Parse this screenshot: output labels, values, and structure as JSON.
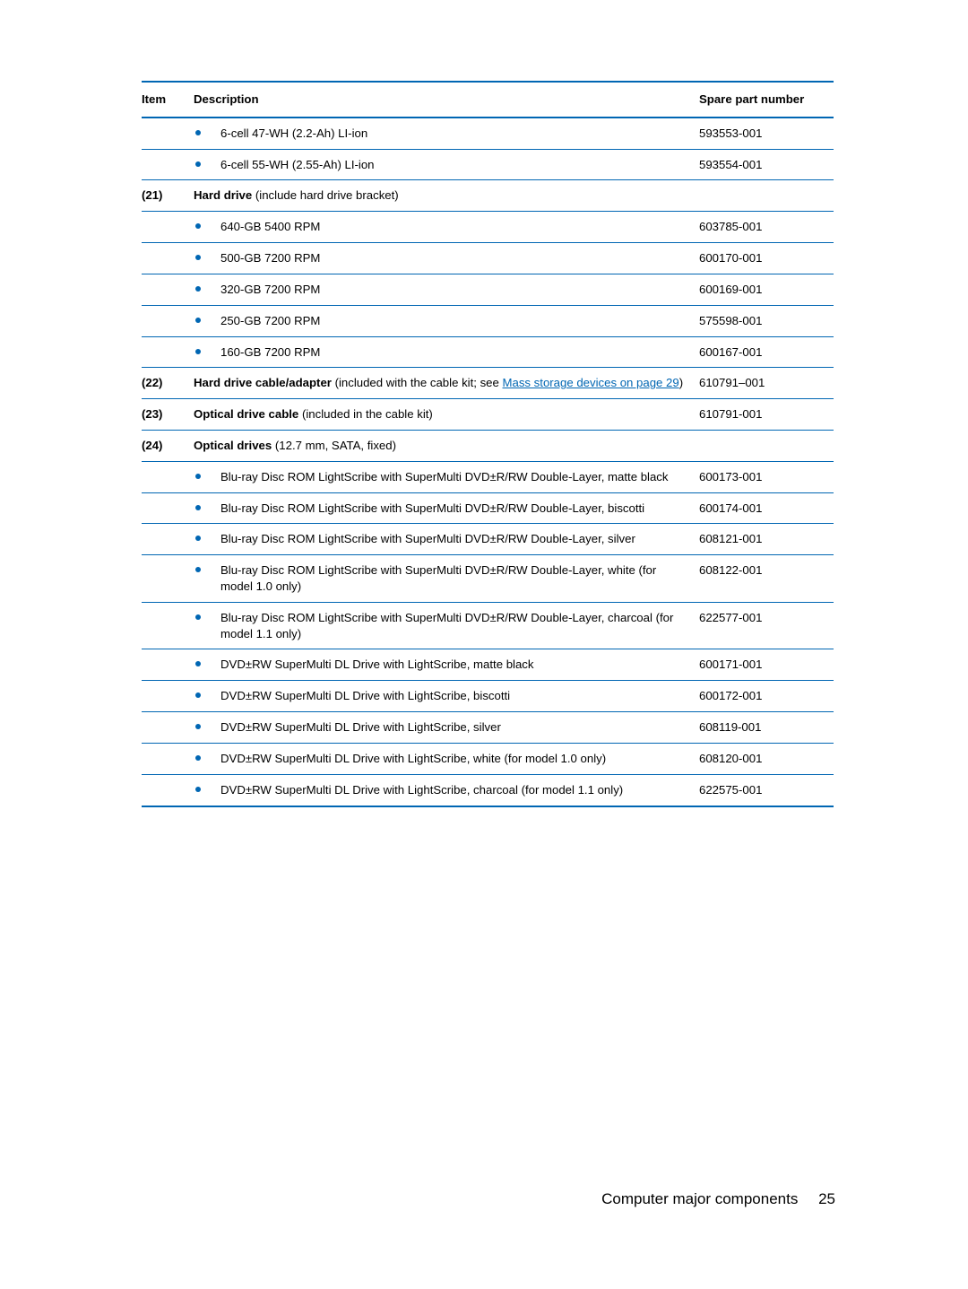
{
  "headers": {
    "item": "Item",
    "description": "Description",
    "spare": "Spare part number"
  },
  "rows": [
    {
      "item": "",
      "bullet": true,
      "desc": "6-cell 47-WH (2.2-Ah) LI-ion",
      "spare": "593553-001"
    },
    {
      "item": "",
      "bullet": true,
      "desc": "6-cell 55-WH (2.55-Ah) LI-ion",
      "spare": "593554-001"
    },
    {
      "item": "(21)",
      "bullet": false,
      "desc_bold": "Hard drive",
      "desc_rest": " (include hard drive bracket)",
      "spare": ""
    },
    {
      "item": "",
      "bullet": true,
      "desc": "640-GB 5400 RPM",
      "spare": "603785-001"
    },
    {
      "item": "",
      "bullet": true,
      "desc": "500-GB 7200 RPM",
      "spare": "600170-001"
    },
    {
      "item": "",
      "bullet": true,
      "desc": "320-GB 7200 RPM",
      "spare": "600169-001"
    },
    {
      "item": "",
      "bullet": true,
      "desc": "250-GB 7200 RPM",
      "spare": "575598-001"
    },
    {
      "item": "",
      "bullet": true,
      "desc": "160-GB 7200 RPM",
      "spare": "600167-001"
    },
    {
      "item": "(22)",
      "bullet": false,
      "desc_bold": "Hard drive cable/adapter",
      "desc_rest": " (included with the cable kit; see ",
      "link_text": "Mass storage devices on page 29",
      "desc_after": ")",
      "spare": "610791–001"
    },
    {
      "item": "(23)",
      "bullet": false,
      "desc_bold": "Optical drive cable",
      "desc_rest": " (included in the cable kit)",
      "spare": "610791-001"
    },
    {
      "item": "(24)",
      "bullet": false,
      "desc_bold": "Optical drives",
      "desc_rest": " (12.7 mm, SATA, fixed)",
      "spare": ""
    },
    {
      "item": "",
      "bullet": true,
      "desc": "Blu-ray Disc ROM LightScribe with SuperMulti DVD±R/RW Double-Layer, matte black",
      "spare": "600173-001"
    },
    {
      "item": "",
      "bullet": true,
      "desc": "Blu-ray Disc ROM LightScribe with SuperMulti DVD±R/RW Double-Layer, biscotti",
      "spare": "600174-001"
    },
    {
      "item": "",
      "bullet": true,
      "desc": "Blu-ray Disc ROM LightScribe with SuperMulti DVD±R/RW Double-Layer, silver",
      "spare": "608121-001"
    },
    {
      "item": "",
      "bullet": true,
      "desc": "Blu-ray Disc ROM LightScribe with SuperMulti DVD±R/RW Double-Layer, white (for model 1.0 only)",
      "spare": "608122-001"
    },
    {
      "item": "",
      "bullet": true,
      "desc": "Blu-ray Disc ROM LightScribe with SuperMulti DVD±R/RW Double-Layer, charcoal (for model 1.1 only)",
      "spare": "622577-001"
    },
    {
      "item": "",
      "bullet": true,
      "desc": "DVD±RW SuperMulti DL Drive with LightScribe, matte black",
      "spare": "600171-001"
    },
    {
      "item": "",
      "bullet": true,
      "desc": "DVD±RW SuperMulti DL Drive with LightScribe, biscotti",
      "spare": "600172-001"
    },
    {
      "item": "",
      "bullet": true,
      "desc": "DVD±RW SuperMulti DL Drive with LightScribe, silver",
      "spare": "608119-001"
    },
    {
      "item": "",
      "bullet": true,
      "desc": "DVD±RW SuperMulti DL Drive with LightScribe, white (for model 1.0 only)",
      "spare": "608120-001"
    },
    {
      "item": "",
      "bullet": true,
      "desc": "DVD±RW SuperMulti DL Drive with LightScribe, charcoal (for model 1.1 only)",
      "spare": "622575-001",
      "last": true
    }
  ],
  "footer": {
    "title": "Computer major components",
    "page": "25"
  }
}
